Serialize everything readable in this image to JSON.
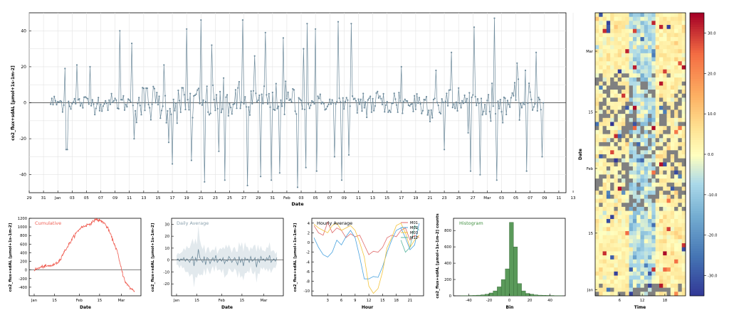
{
  "chart_data": [
    {
      "type": "line",
      "panel": "main-timeseries",
      "title": "",
      "xlabel": "Date",
      "ylabel": "co2_flux+sdAL  [µmol+1s-1m-2]",
      "ylim": [
        -50,
        50
      ],
      "yticks": [
        -40,
        -20,
        0,
        20,
        40
      ],
      "xtick_labels": [
        "29",
        "31",
        "Jan",
        "03",
        "05",
        "07",
        "09",
        "11",
        "13",
        "15",
        "17",
        "19",
        "21",
        "23",
        "25",
        "27",
        "29",
        "31",
        "Feb",
        "03",
        "05",
        "07",
        "09",
        "11",
        "13",
        "15",
        "17",
        "19",
        "21",
        "23",
        "25",
        "27",
        "Mar",
        "03",
        "05",
        "07",
        "09",
        "11",
        "13"
      ],
      "x_range": [
        "2015-12-29",
        "2016-03-13"
      ],
      "data_range": [
        "2016-01-01",
        "2016-03-10"
      ],
      "series_color": "#6e8b9c",
      "marker": "circle",
      "grid": true,
      "spikes_up": [
        [
          12,
          19
        ],
        [
          14,
          -26
        ],
        [
          22,
          21
        ],
        [
          33,
          20
        ],
        [
          58,
          40
        ],
        [
          68,
          33
        ],
        [
          95,
          21
        ],
        [
          102,
          34
        ],
        [
          114,
          41
        ],
        [
          126,
          46
        ],
        [
          135,
          32
        ],
        [
          146,
          44
        ],
        [
          161,
          46
        ],
        [
          171,
          26
        ],
        [
          180,
          39
        ],
        [
          195,
          36
        ],
        [
          207,
          42
        ],
        [
          212,
          30
        ],
        [
          215,
          44
        ],
        [
          222,
          41
        ],
        [
          241,
          45
        ],
        [
          244,
          41
        ],
        [
          252,
          44
        ],
        [
          294,
          20
        ],
        [
          323,
          18
        ],
        [
          336,
          28
        ],
        [
          355,
          42
        ],
        [
          372,
          47
        ],
        [
          391,
          22
        ],
        [
          398,
          18
        ],
        [
          407,
          28
        ],
        [
          418,
          48
        ],
        [
          429,
          29
        ],
        [
          441,
          20
        ]
      ],
      "spikes_down": [
        [
          13,
          -26
        ],
        [
          70,
          -20
        ],
        [
          99,
          -22
        ],
        [
          102,
          -34
        ],
        [
          118,
          -32
        ],
        [
          129,
          -44
        ],
        [
          141,
          -27
        ],
        [
          146,
          -43
        ],
        [
          165,
          -46
        ],
        [
          176,
          -41
        ],
        [
          185,
          -43
        ],
        [
          192,
          -39
        ],
        [
          207,
          -47
        ],
        [
          214,
          -36
        ],
        [
          223,
          -38
        ],
        [
          238,
          -30
        ],
        [
          244,
          -43
        ],
        [
          250,
          -29
        ],
        [
          330,
          -26
        ],
        [
          352,
          -38
        ],
        [
          360,
          -40
        ],
        [
          374,
          -43
        ],
        [
          399,
          -38
        ],
        [
          412,
          -30
        ],
        [
          430,
          -31
        ]
      ]
    },
    {
      "type": "line",
      "panel": "cumulative",
      "title": "Cumulative",
      "xlabel": "Date",
      "ylabel": "co2_flux+sdAL  [µmol+1s-1m-2]",
      "ylim": [
        -600,
        1200
      ],
      "yticks": [
        -400,
        -200,
        0,
        200,
        400,
        600,
        800,
        1000,
        1200
      ],
      "xtick_labels": [
        "Jan",
        "15",
        "Feb",
        "15",
        "Mar"
      ],
      "color": "#ef5a4f",
      "keypoints": [
        [
          0,
          0
        ],
        [
          3,
          40
        ],
        [
          6,
          80
        ],
        [
          10,
          90
        ],
        [
          14,
          120
        ],
        [
          17,
          200
        ],
        [
          20,
          380
        ],
        [
          24,
          600
        ],
        [
          28,
          820
        ],
        [
          32,
          980
        ],
        [
          36,
          1040
        ],
        [
          40,
          1100
        ],
        [
          42,
          1180
        ],
        [
          45,
          1150
        ],
        [
          48,
          1100
        ],
        [
          51,
          950
        ],
        [
          54,
          700
        ],
        [
          57,
          450
        ],
        [
          59,
          150
        ],
        [
          61,
          -100
        ],
        [
          63,
          -300
        ],
        [
          66,
          -420
        ],
        [
          69,
          -490
        ]
      ]
    },
    {
      "type": "area",
      "panel": "daily-average",
      "title": "Daily Average",
      "xlabel": "Date",
      "ylabel": "co2_flux+sdAL  [µmol+1s-1m-2]",
      "ylim": [
        -30,
        35
      ],
      "yticks": [
        -20,
        -10,
        0,
        10,
        20,
        30
      ],
      "xtick_labels": [
        "Jan",
        "15",
        "Feb",
        "15",
        "Mar"
      ],
      "color": "#6e8b9c",
      "band_color": "#d5dfe6",
      "mean": [
        0,
        1,
        -1,
        1,
        0,
        2,
        -1,
        1,
        0,
        -2,
        1,
        3,
        -5,
        2,
        -1,
        9,
        2,
        0,
        -2,
        3,
        -4,
        2,
        1,
        -3,
        0,
        2,
        -1,
        4,
        -2,
        0,
        1,
        -1,
        2,
        -3,
        0,
        -1,
        3,
        1,
        -2,
        0,
        2,
        -1,
        -4,
        3,
        -2,
        1,
        -5,
        2,
        0,
        1,
        -2,
        3,
        -1,
        0,
        2,
        -6,
        1,
        -2,
        3,
        0,
        1,
        -1,
        2,
        0,
        4,
        -2,
        0,
        1,
        -1,
        2
      ],
      "spread": [
        4,
        5,
        6,
        5,
        7,
        8,
        9,
        11,
        10,
        12,
        13,
        15,
        18,
        16,
        14,
        20,
        15,
        12,
        11,
        10,
        9,
        8,
        10,
        9,
        8,
        7,
        9,
        8,
        7,
        8,
        9,
        10,
        9,
        12,
        13,
        11,
        10,
        9,
        8,
        10,
        9,
        8,
        11,
        12,
        13,
        14,
        12,
        13,
        11,
        10,
        9,
        8,
        10,
        12,
        11,
        13,
        12,
        10,
        9,
        8,
        7,
        8,
        9,
        10,
        11,
        9,
        8,
        7,
        6,
        5
      ]
    },
    {
      "type": "line",
      "panel": "hourly-average",
      "title": "Hourly Average",
      "xlabel": "Hour",
      "ylabel": "co2_flux+sdAL  [µmol+1s-1m-2]",
      "ylim": [
        -11,
        5
      ],
      "yticks": [
        -10,
        -8,
        -6,
        -4,
        -2,
        0,
        2,
        4
      ],
      "xticks": [
        3,
        6,
        9,
        12,
        15,
        18,
        21
      ],
      "x": [
        0,
        1,
        2,
        3,
        4,
        5,
        6,
        7,
        8,
        9,
        10,
        11,
        12,
        13,
        14,
        15,
        16,
        17,
        18,
        19,
        20,
        21,
        22,
        23
      ],
      "series": [
        {
          "name": "M01",
          "color": "#e06a6a",
          "values": [
            3.5,
            2.0,
            1.5,
            4.2,
            2.0,
            3.0,
            2.5,
            1.0,
            1.8,
            1.2,
            1.5,
            -0.5,
            -2.5,
            -1.8,
            -2.0,
            -1.0,
            1.0,
            1.5,
            1.2,
            2.5,
            3.0,
            0.5,
            1.5,
            1.0
          ]
        },
        {
          "name": "M02",
          "color": "#4aa3df",
          "values": [
            1.0,
            -1.0,
            -2.5,
            -3.0,
            -2.0,
            0.5,
            -0.5,
            1.2,
            2.5,
            1.0,
            -3.0,
            -7.5,
            -7.5,
            -7.0,
            -7.2,
            -5.0,
            -2.0,
            0.5,
            2.5,
            3.0,
            1.0,
            -1.5,
            -0.5,
            4.0
          ]
        },
        {
          "name": "M03",
          "color": "#f3c43d",
          "values": [
            3.8,
            3.0,
            2.5,
            2.0,
            3.5,
            4.0,
            2.5,
            3.0,
            3.5,
            2.5,
            0.0,
            -3.0,
            -9.0,
            -10.5,
            -9.5,
            -6.0,
            -1.0,
            1.0,
            3.5,
            4.0,
            2.0,
            -1.0,
            0.5,
            1.5
          ]
        },
        {
          "name": "M12",
          "color": "#5fb8a2",
          "values": [
            null,
            null,
            null,
            null,
            null,
            null,
            null,
            null,
            null,
            null,
            null,
            null,
            null,
            null,
            null,
            null,
            null,
            null,
            null,
            0.5,
            -2.0,
            -1.0,
            3.5,
            2.5
          ]
        }
      ]
    },
    {
      "type": "bar",
      "panel": "histogram",
      "title": "Histogram",
      "xlabel": "Bin",
      "ylabel": "co2_flux+sdAL  [µmol+1s-1m-2]  counts",
      "ylim": [
        0,
        950
      ],
      "yticks": [
        0,
        200,
        400,
        600,
        800
      ],
      "xticks": [
        -40,
        -20,
        0,
        20,
        40
      ],
      "xlim": [
        -55,
        55
      ],
      "color": "#5a9a5a",
      "bin_width": 4,
      "bin_centers": [
        -46,
        -42,
        -38,
        -34,
        -30,
        -26,
        -22,
        -18,
        -14,
        -10,
        -6,
        -2,
        2,
        6,
        10,
        14,
        18,
        22,
        26,
        30,
        34,
        38,
        42,
        46,
        50
      ],
      "counts": [
        2,
        3,
        4,
        5,
        8,
        12,
        20,
        35,
        60,
        110,
        200,
        330,
        900,
        600,
        150,
        60,
        30,
        20,
        12,
        8,
        6,
        5,
        4,
        3,
        2
      ]
    },
    {
      "type": "heatmap",
      "panel": "heatmap",
      "title": "",
      "xlabel": "Time",
      "ylabel": "Date",
      "xticks": [
        6,
        12,
        18
      ],
      "ytick_labels": [
        "Jan",
        "15",
        "Feb",
        "15",
        "Mar"
      ],
      "colormap": "RdYlBu_r",
      "missing_color": "#808080",
      "colorbar": {
        "min": -35,
        "max": 35,
        "ticks": [
          "30.0",
          "20.0",
          "10.0",
          "0.0",
          "-10.0",
          "-20.0",
          "-30.0"
        ]
      },
      "rows": 70,
      "cols": 24
    }
  ]
}
